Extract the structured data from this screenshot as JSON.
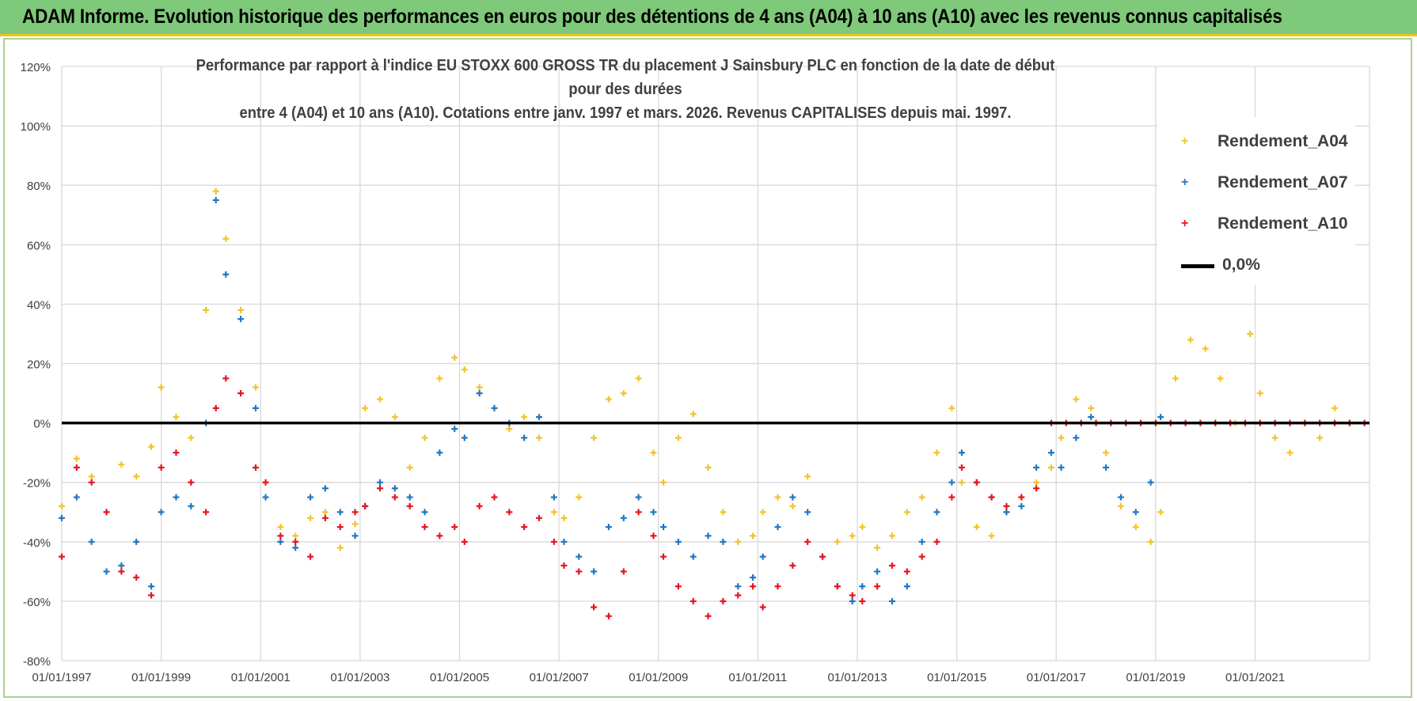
{
  "banner": {
    "title": "ADAM Informe. Evolution historique des performances en euros pour des détentions de 4 ans (A04) à 10 ans (A10) avec les revenus connus capitalisés"
  },
  "colors": {
    "banner_bg": "#7fc97a",
    "banner_border": "#f0c419",
    "a04": "#f5c22a",
    "a07": "#1f77c4",
    "a10": "#e8141e",
    "zero_line": "#000000",
    "grid": "#d9d9d9",
    "axis_text": "#404040"
  },
  "chart_data": {
    "type": "scatter",
    "title_line1": "Performance par rapport à l'indice EU STOXX 600 GROSS TR  du placement J Sainsbury PLC en fonction de la date de début pour des durées",
    "title_line2": "entre 4 (A04) et 10 ans (A10). Cotations entre janv. 1997 et mars. 2026. Revenus CAPITALISES depuis mai. 1997.",
    "xlim": [
      1997.0,
      2023.3
    ],
    "ylim": [
      -80,
      120
    ],
    "x_ticks": [
      1997,
      1999,
      2001,
      2003,
      2005,
      2007,
      2009,
      2011,
      2013,
      2015,
      2017,
      2019,
      2021
    ],
    "x_tick_labels": [
      "01/01/1997",
      "01/01/1999",
      "01/01/2001",
      "01/01/2003",
      "01/01/2005",
      "01/01/2007",
      "01/01/2009",
      "01/01/2011",
      "01/01/2013",
      "01/01/2015",
      "01/01/2017",
      "01/01/2019",
      "01/01/2021"
    ],
    "y_ticks": [
      -80,
      -60,
      -40,
      -20,
      0,
      20,
      40,
      60,
      80,
      100,
      120
    ],
    "y_tick_labels": [
      "-80%",
      "-60%",
      "-40%",
      "-20%",
      "0%",
      "20%",
      "40%",
      "60%",
      "80%",
      "100%",
      "120%"
    ],
    "grid": true,
    "legend_position": "top-right",
    "reference_line": {
      "name": "0,0%",
      "y": 0
    },
    "series": [
      {
        "name": "Rendement_A04",
        "marker": "+",
        "x": [
          1997.0,
          1997.3,
          1997.6,
          1997.9,
          1998.2,
          1998.5,
          1998.8,
          1999.0,
          1999.3,
          1999.6,
          1999.9,
          2000.1,
          2000.3,
          2000.6,
          2000.9,
          2001.1,
          2001.4,
          2001.7,
          2002.0,
          2002.3,
          2002.6,
          2002.9,
          2003.1,
          2003.4,
          2003.7,
          2004.0,
          2004.3,
          2004.6,
          2004.9,
          2005.1,
          2005.4,
          2005.7,
          2006.0,
          2006.3,
          2006.6,
          2006.9,
          2007.1,
          2007.4,
          2007.7,
          2008.0,
          2008.3,
          2008.6,
          2008.9,
          2009.1,
          2009.4,
          2009.7,
          2010.0,
          2010.3,
          2010.6,
          2010.9,
          2011.1,
          2011.4,
          2011.7,
          2012.0,
          2012.3,
          2012.6,
          2012.9,
          2013.1,
          2013.4,
          2013.7,
          2014.0,
          2014.3,
          2014.6,
          2014.9,
          2015.1,
          2015.4,
          2015.7,
          2016.0,
          2016.3,
          2016.6,
          2016.9,
          2017.1,
          2017.4,
          2017.7,
          2018.0,
          2018.3,
          2018.6,
          2018.9,
          2019.1,
          2019.4,
          2019.7,
          2020.0,
          2020.3,
          2020.6,
          2020.9,
          2021.1,
          2021.4,
          2021.7,
          2022.0,
          2022.3,
          2022.6,
          2022.9
        ],
        "y": [
          -28,
          -12,
          -18,
          -30,
          -14,
          -18,
          -8,
          12,
          2,
          -5,
          38,
          78,
          62,
          38,
          12,
          -20,
          -35,
          -38,
          -32,
          -30,
          -42,
          -34,
          5,
          8,
          2,
          -15,
          -5,
          15,
          22,
          18,
          12,
          5,
          -2,
          2,
          -5,
          -30,
          -32,
          -25,
          -5,
          8,
          10,
          15,
          -10,
          -20,
          -5,
          3,
          -15,
          -30,
          -40,
          -38,
          -30,
          -25,
          -28,
          -18,
          -45,
          -40,
          -38,
          -35,
          -42,
          -38,
          -30,
          -25,
          -10,
          5,
          -20,
          -35,
          -38,
          -30,
          -25,
          -20,
          -15,
          -5,
          8,
          5,
          -10,
          -28,
          -35,
          -40,
          -30,
          15,
          28,
          25,
          15,
          0,
          30,
          10,
          -5,
          -10,
          0,
          -5,
          5,
          0
        ]
      },
      {
        "name": "Rendement_A07",
        "marker": "+",
        "x": [
          1997.0,
          1997.3,
          1997.6,
          1997.9,
          1998.2,
          1998.5,
          1998.8,
          1999.0,
          1999.3,
          1999.6,
          1999.9,
          2000.1,
          2000.3,
          2000.6,
          2000.9,
          2001.1,
          2001.4,
          2001.7,
          2002.0,
          2002.3,
          2002.6,
          2002.9,
          2003.1,
          2003.4,
          2003.7,
          2004.0,
          2004.3,
          2004.6,
          2004.9,
          2005.1,
          2005.4,
          2005.7,
          2006.0,
          2006.3,
          2006.6,
          2006.9,
          2007.1,
          2007.4,
          2007.7,
          2008.0,
          2008.3,
          2008.6,
          2008.9,
          2009.1,
          2009.4,
          2009.7,
          2010.0,
          2010.3,
          2010.6,
          2010.9,
          2011.1,
          2011.4,
          2011.7,
          2012.0,
          2012.3,
          2012.6,
          2012.9,
          2013.1,
          2013.4,
          2013.7,
          2014.0,
          2014.3,
          2014.6,
          2014.9,
          2015.1,
          2015.4,
          2015.7,
          2016.0,
          2016.3,
          2016.6,
          2016.9,
          2017.1,
          2017.4,
          2017.7,
          2018.0,
          2018.3,
          2018.6,
          2018.9,
          2019.1
        ],
        "y": [
          -32,
          -25,
          -40,
          -50,
          -48,
          -40,
          -55,
          -30,
          -25,
          -28,
          0,
          75,
          50,
          35,
          5,
          -25,
          -40,
          -42,
          -25,
          -22,
          -30,
          -38,
          -28,
          -20,
          -22,
          -25,
          -30,
          -10,
          -2,
          -5,
          10,
          5,
          0,
          -5,
          2,
          -25,
          -40,
          -45,
          -50,
          -35,
          -32,
          -25,
          -30,
          -35,
          -40,
          -45,
          -38,
          -40,
          -55,
          -52,
          -45,
          -35,
          -25,
          -30,
          -45,
          -55,
          -60,
          -55,
          -50,
          -60,
          -55,
          -40,
          -30,
          -20,
          -10,
          -20,
          -25,
          -30,
          -28,
          -15,
          -10,
          -15,
          -5,
          2,
          -15,
          -25,
          -30,
          -20,
          2
        ]
      },
      {
        "name": "Rendement_A10",
        "marker": "+",
        "x": [
          1997.0,
          1997.3,
          1997.6,
          1997.9,
          1998.2,
          1998.5,
          1998.8,
          1999.0,
          1999.3,
          1999.6,
          1999.9,
          2000.1,
          2000.3,
          2000.6,
          2000.9,
          2001.1,
          2001.4,
          2001.7,
          2002.0,
          2002.3,
          2002.6,
          2002.9,
          2003.1,
          2003.4,
          2003.7,
          2004.0,
          2004.3,
          2004.6,
          2004.9,
          2005.1,
          2005.4,
          2005.7,
          2006.0,
          2006.3,
          2006.6,
          2006.9,
          2007.1,
          2007.4,
          2007.7,
          2008.0,
          2008.3,
          2008.6,
          2008.9,
          2009.1,
          2009.4,
          2009.7,
          2010.0,
          2010.3,
          2010.6,
          2010.9,
          2011.1,
          2011.4,
          2011.7,
          2012.0,
          2012.3,
          2012.6,
          2012.9,
          2013.1,
          2013.4,
          2013.7,
          2014.0,
          2014.3,
          2014.6,
          2014.9,
          2015.1,
          2015.4,
          2015.7,
          2016.0,
          2016.3,
          2016.6,
          2016.9,
          2017.2,
          2017.5,
          2017.8,
          2018.1,
          2018.4,
          2018.7,
          2019.0,
          2019.3,
          2019.6,
          2019.9,
          2020.2,
          2020.5,
          2020.8,
          2021.1,
          2021.4,
          2021.7,
          2022.0,
          2022.3,
          2022.6,
          2022.9,
          2023.2
        ],
        "y": [
          -45,
          -15,
          -20,
          -30,
          -50,
          -52,
          -58,
          -15,
          -10,
          -20,
          -30,
          5,
          15,
          10,
          -15,
          -20,
          -38,
          -40,
          -45,
          -32,
          -35,
          -30,
          -28,
          -22,
          -25,
          -28,
          -35,
          -38,
          -35,
          -40,
          -28,
          -25,
          -30,
          -35,
          -32,
          -40,
          -48,
          -50,
          -62,
          -65,
          -50,
          -30,
          -38,
          -45,
          -55,
          -60,
          -65,
          -60,
          -58,
          -55,
          -62,
          -55,
          -48,
          -40,
          -45,
          -55,
          -58,
          -60,
          -55,
          -48,
          -50,
          -45,
          -40,
          -25,
          -15,
          -20,
          -25,
          -28,
          -25,
          -22,
          0,
          0,
          0,
          0,
          0,
          0,
          0,
          0,
          0,
          0,
          0,
          0,
          0,
          0,
          0,
          0,
          0,
          0,
          0,
          0,
          0,
          0
        ]
      }
    ]
  }
}
